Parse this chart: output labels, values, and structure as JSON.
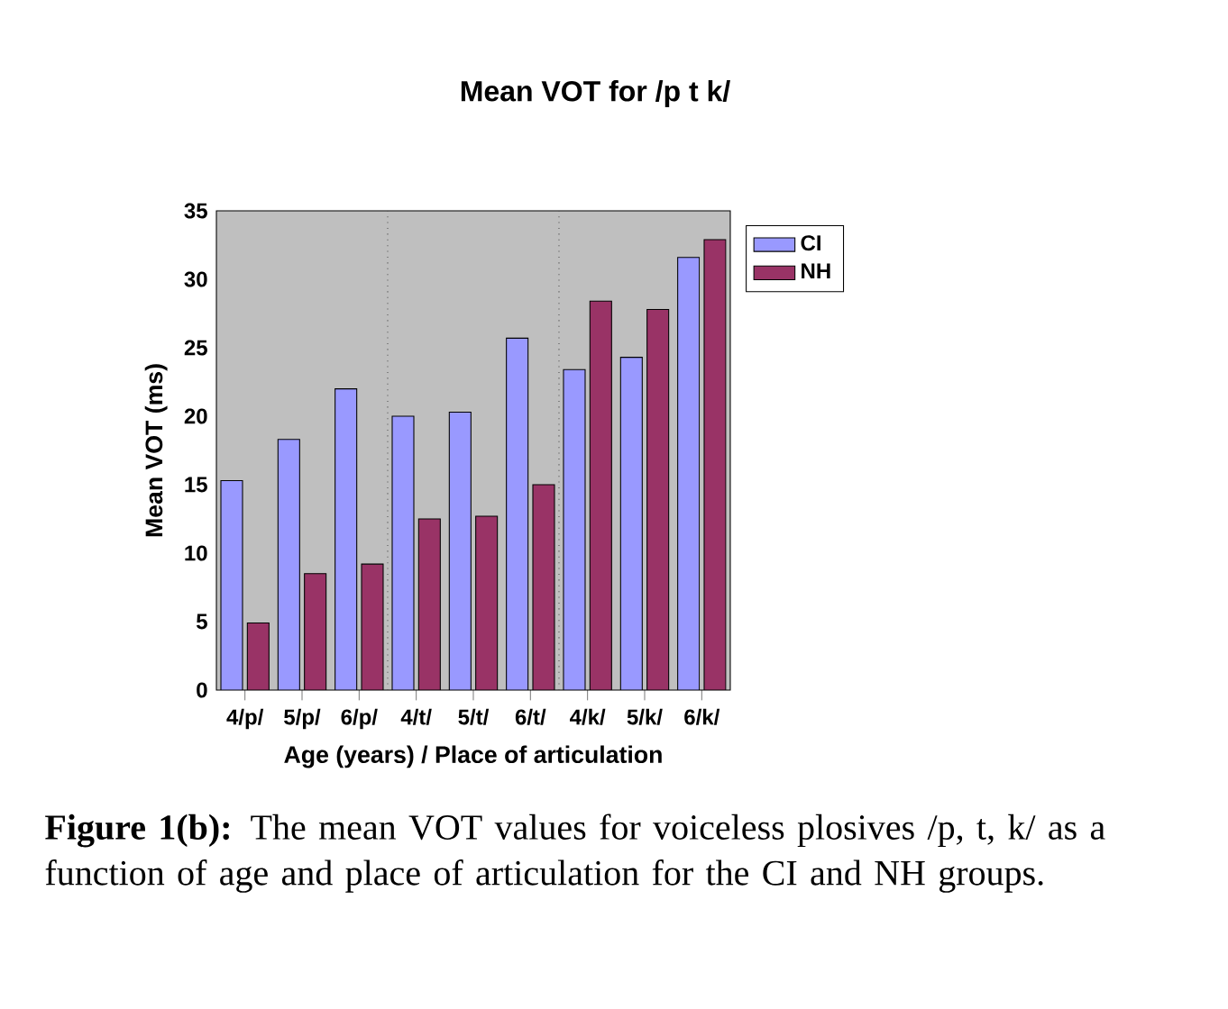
{
  "chart_data": {
    "type": "bar",
    "title": "Mean VOT for /p t k/",
    "xlabel": "Age (years) / Place of articulation",
    "ylabel": "Mean VOT (ms)",
    "categories": [
      "4/p/",
      "5/p/",
      "6/p/",
      "4/t/",
      "5/t/",
      "6/t/",
      "4/k/",
      "5/k/",
      "6/k/"
    ],
    "series": [
      {
        "name": "CI",
        "color": "#9999ff",
        "values": [
          15.3,
          18.3,
          22.0,
          20.0,
          20.3,
          25.7,
          23.4,
          24.3,
          31.6
        ]
      },
      {
        "name": "NH",
        "color": "#993366",
        "values": [
          4.9,
          8.5,
          9.2,
          12.5,
          12.7,
          15.0,
          28.4,
          27.8,
          32.9
        ]
      }
    ],
    "ylim": [
      0,
      35
    ],
    "yticks": [
      0,
      5,
      10,
      15,
      20,
      25,
      30,
      35
    ],
    "grid": false,
    "legend": "right",
    "annotations": [
      "**Figure 1(b):** The mean VOT values for voiceless plosives /p, t, k/ as a function of age and place of articulation for the CI and NH groups."
    ]
  }
}
